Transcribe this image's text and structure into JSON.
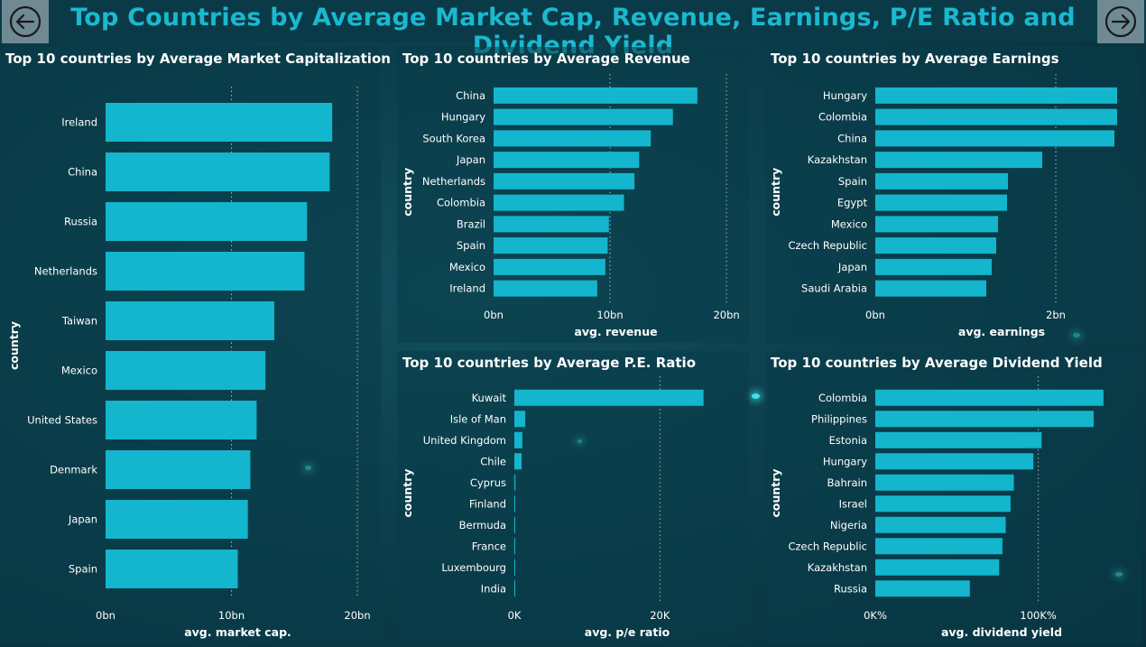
{
  "header": {
    "title": "Top Countries by Average Market Cap, Revenue, Earnings, P/E Ratio and Dividend Yield",
    "back_icon": "arrow-left-circle-icon",
    "forward_icon": "arrow-right-circle-icon"
  },
  "colors": {
    "bar": "#13b6cc",
    "title": "#1bb8cf",
    "background": "#0c3f4d"
  },
  "chart_data": [
    {
      "id": "market_cap",
      "type": "bar",
      "orientation": "horizontal",
      "title": "Top 10 countries by Average Market Capitalization",
      "xlabel": "avg. market cap.",
      "ylabel": "country",
      "unit": "bn",
      "xlim": [
        0,
        21
      ],
      "ticks": [
        0,
        10,
        20
      ],
      "tick_labels": [
        "0bn",
        "10bn",
        "20bn"
      ],
      "categories": [
        "Ireland",
        "China",
        "Russia",
        "Netherlands",
        "Taiwan",
        "Mexico",
        "United States",
        "Denmark",
        "Japan",
        "Spain"
      ],
      "values": [
        18.0,
        17.8,
        16.0,
        15.8,
        13.4,
        12.7,
        12.0,
        11.5,
        11.3,
        10.5
      ]
    },
    {
      "id": "revenue",
      "type": "bar",
      "orientation": "horizontal",
      "title": "Top 10 countries by Average Revenue",
      "xlabel": "avg. revenue",
      "ylabel": "country",
      "unit": "bn",
      "xlim": [
        0,
        21
      ],
      "ticks": [
        0,
        10,
        20
      ],
      "tick_labels": [
        "0bn",
        "10bn",
        "20bn"
      ],
      "categories": [
        "China",
        "Hungary",
        "South Korea",
        "Japan",
        "Netherlands",
        "Colombia",
        "Brazil",
        "Spain",
        "Mexico",
        "Ireland"
      ],
      "values": [
        17.5,
        15.4,
        13.5,
        12.5,
        12.1,
        11.2,
        9.9,
        9.8,
        9.6,
        8.9
      ]
    },
    {
      "id": "earnings",
      "type": "bar",
      "orientation": "horizontal",
      "title": "Top 10 countries by Average Earnings",
      "xlabel": "avg. earnings",
      "ylabel": "country",
      "unit": "bn",
      "xlim": [
        0,
        2.8
      ],
      "ticks": [
        0,
        2
      ],
      "tick_labels": [
        "0bn",
        "2bn"
      ],
      "categories": [
        "Hungary",
        "Colombia",
        "China",
        "Kazakhstan",
        "Spain",
        "Egypt",
        "Mexico",
        "Czech Republic",
        "Japan",
        "Saudi Arabia"
      ],
      "values": [
        2.68,
        2.68,
        2.65,
        1.85,
        1.47,
        1.46,
        1.36,
        1.34,
        1.29,
        1.23
      ]
    },
    {
      "id": "pe_ratio",
      "type": "bar",
      "orientation": "horizontal",
      "title": "Top 10 countries by Average P.E. Ratio",
      "xlabel": "avg. p/e ratio",
      "ylabel": "country",
      "unit": "K",
      "xlim": [
        0,
        31
      ],
      "ticks": [
        0,
        20
      ],
      "tick_labels": [
        "0K",
        "20K"
      ],
      "categories": [
        "Kuwait",
        "Isle of Man",
        "United Kingdom",
        "Chile",
        "Cyprus",
        "Finland",
        "Bermuda",
        "France",
        "Luxembourg",
        "India"
      ],
      "values": [
        26.0,
        1.5,
        1.1,
        1.0,
        0.15,
        0.12,
        0.1,
        0.1,
        0.08,
        0.05
      ]
    },
    {
      "id": "dividend_yield",
      "type": "bar",
      "orientation": "horizontal",
      "title": "Top 10 countries by Average Dividend Yield",
      "xlabel": "avg. dividend yield",
      "ylabel": "country",
      "unit": "K%",
      "xlim": [
        0,
        155
      ],
      "ticks": [
        0,
        100
      ],
      "tick_labels": [
        "0K%",
        "100K%"
      ],
      "categories": [
        "Colombia",
        "Philippines",
        "Estonia",
        "Hungary",
        "Bahrain",
        "Israel",
        "Nigeria",
        "Czech Republic",
        "Kazakhstan",
        "Russia"
      ],
      "values": [
        140,
        134,
        102,
        97,
        85,
        83,
        80,
        78,
        76,
        58
      ]
    }
  ]
}
